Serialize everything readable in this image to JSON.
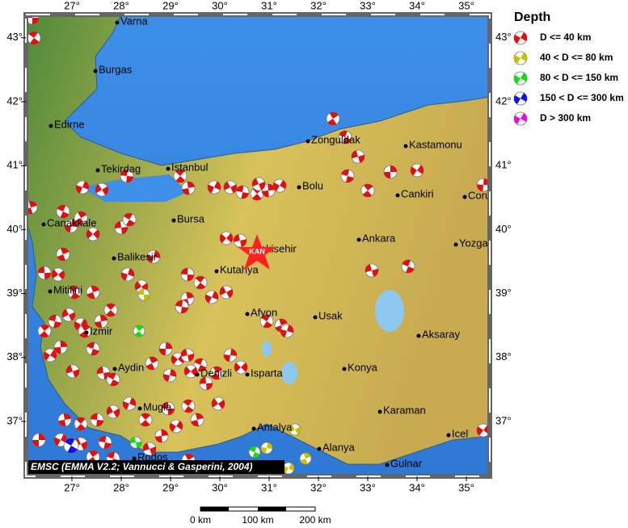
{
  "map": {
    "longitude_ticks": [
      {
        "value": 27,
        "label": "27°"
      },
      {
        "value": 28,
        "label": "28°"
      },
      {
        "value": 29,
        "label": "29°"
      },
      {
        "value": 30,
        "label": "30°"
      },
      {
        "value": 31,
        "label": "31°"
      },
      {
        "value": 32,
        "label": "32°"
      },
      {
        "value": 33,
        "label": "33°"
      },
      {
        "value": 34,
        "label": "34°"
      },
      {
        "value": 35,
        "label": "35°"
      }
    ],
    "latitude_ticks": [
      {
        "value": 37,
        "label": "37°"
      },
      {
        "value": 38,
        "label": "38°"
      },
      {
        "value": 39,
        "label": "39°"
      },
      {
        "value": 40,
        "label": "40°"
      },
      {
        "value": 41,
        "label": "41°"
      },
      {
        "value": 42,
        "label": "42°"
      },
      {
        "value": 43,
        "label": "43°"
      }
    ],
    "cities": [
      "Varna",
      "Burgas",
      "Edirne",
      "Tekirdag",
      "Istanbul",
      "Zonguldak",
      "Kastamonu",
      "Bolu",
      "Cankiri",
      "Corum",
      "Canakkale",
      "Bursa",
      "Ankara",
      "Yozgat",
      "Balikesir",
      "Eskisehir",
      "Kutahya",
      "Mitilini",
      "Afyon",
      "Usak",
      "Izmir",
      "Aksaray",
      "Aydin",
      "Denizli",
      "Isparta",
      "Konya",
      "Mugla",
      "Karaman",
      "Antalya",
      "Icel",
      "Alanya",
      "Gulnar",
      "Rodos"
    ],
    "epicenter_label": "KAN",
    "credit": "EMSC (EMMA V2.2; Vannucci & Gasperini, 2004)",
    "legend": {
      "title": "Depth",
      "entries": [
        {
          "label": "D <= 40 km",
          "color": "#e01010"
        },
        {
          "label": "40 < D <= 80 km",
          "color": "#c8c000"
        },
        {
          "label": "80 < D <= 150 km",
          "color": "#10e010"
        },
        {
          "label": "150 < D <= 300 km",
          "color": "#1010e0"
        },
        {
          "label": "D > 300 km",
          "color": "#e010e0"
        }
      ]
    },
    "scale_bar": [
      "0 km",
      "100 km",
      "200 km"
    ]
  }
}
